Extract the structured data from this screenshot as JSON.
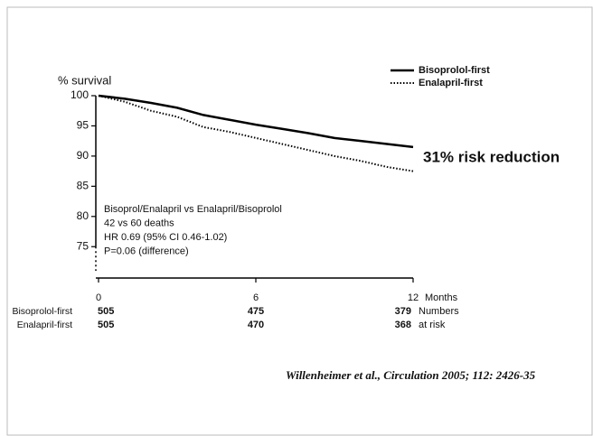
{
  "chart_data": {
    "type": "line",
    "y_label": "% survival",
    "x_label": "Months",
    "x": [
      0,
      1,
      2,
      3,
      4,
      5,
      6,
      7,
      8,
      9,
      10,
      11,
      12
    ],
    "series": [
      {
        "name": "Bisoprolol-first",
        "color": "#000000",
        "style": "solid",
        "values": [
          100,
          99.5,
          98.8,
          98,
          96.8,
          96,
          95.2,
          94.5,
          93.8,
          93,
          92.5,
          92,
          91.5
        ]
      },
      {
        "name": "Enalapril-first",
        "color": "#000000",
        "style": "dotted",
        "values": [
          100,
          99,
          97.5,
          96.5,
          94.8,
          94,
          93,
          92,
          91,
          90,
          89.2,
          88.2,
          87.5
        ]
      }
    ],
    "xlim": [
      0,
      12
    ],
    "xticks": [
      0,
      6,
      12
    ],
    "ylim": [
      71,
      100
    ],
    "yticks": [
      75,
      80,
      85,
      90,
      95,
      100
    ],
    "legend": "top-right",
    "annotation": "31% risk reduction",
    "stats": [
      "Bisoprol/Enalapril vs Enalapril/Bisoprolol",
      "42 vs 60 deaths",
      "HR 0.69 (95% CI 0.46-1.02)",
      "P=0.06 (difference)"
    ],
    "risk_table": {
      "label": [
        "Numbers",
        "at risk"
      ],
      "rows": [
        {
          "name": "Bisoprolol-first",
          "values": [
            505,
            475,
            379
          ]
        },
        {
          "name": "Enalapril-first",
          "values": [
            505,
            470,
            368
          ]
        }
      ]
    },
    "citation": "Willenheimer et al., Circulation 2005; 112: 2426-35"
  }
}
